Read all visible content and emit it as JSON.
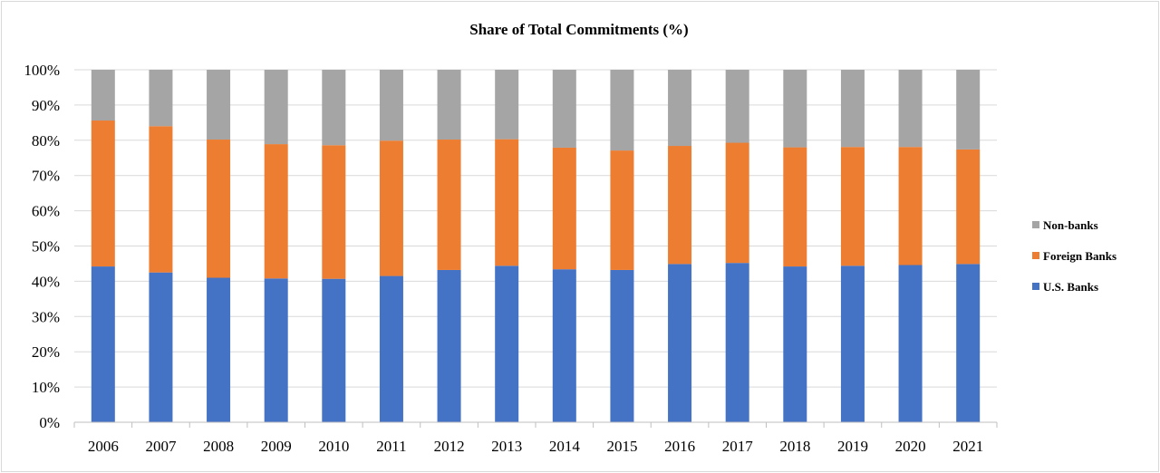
{
  "chart_data": {
    "type": "bar",
    "stacked": true,
    "title": "Share of Total Commitments (%)",
    "xlabel": "",
    "ylabel": "",
    "ylim": [
      0,
      100
    ],
    "y_ticks": [
      "0%",
      "10%",
      "20%",
      "30%",
      "40%",
      "50%",
      "60%",
      "70%",
      "80%",
      "90%",
      "100%"
    ],
    "grid": true,
    "legend_position": "right",
    "categories": [
      "2006",
      "2007",
      "2008",
      "2009",
      "2010",
      "2011",
      "2012",
      "2013",
      "2014",
      "2015",
      "2016",
      "2017",
      "2018",
      "2019",
      "2020",
      "2021"
    ],
    "series": [
      {
        "name": "U.S. Banks",
        "color": "#4472c4",
        "values": [
          44.2,
          42.5,
          41.0,
          40.8,
          40.7,
          41.5,
          43.2,
          44.4,
          43.4,
          43.2,
          44.9,
          45.2,
          44.2,
          44.4,
          44.6,
          44.9
        ]
      },
      {
        "name": "Foreign Banks",
        "color": "#ed7d31",
        "values": [
          41.4,
          41.5,
          39.2,
          38.1,
          37.9,
          38.4,
          37.0,
          35.9,
          34.5,
          33.9,
          33.5,
          34.1,
          33.8,
          33.7,
          33.5,
          32.5
        ]
      },
      {
        "name": "Non-banks",
        "color": "#a5a5a5",
        "values": [
          14.4,
          16.0,
          19.8,
          21.1,
          21.4,
          20.1,
          19.8,
          19.7,
          22.1,
          22.9,
          21.6,
          20.7,
          22.0,
          21.9,
          21.9,
          22.6
        ]
      }
    ],
    "legend_order": [
      "Non-banks",
      "Foreign Banks",
      "U.S. Banks"
    ]
  }
}
